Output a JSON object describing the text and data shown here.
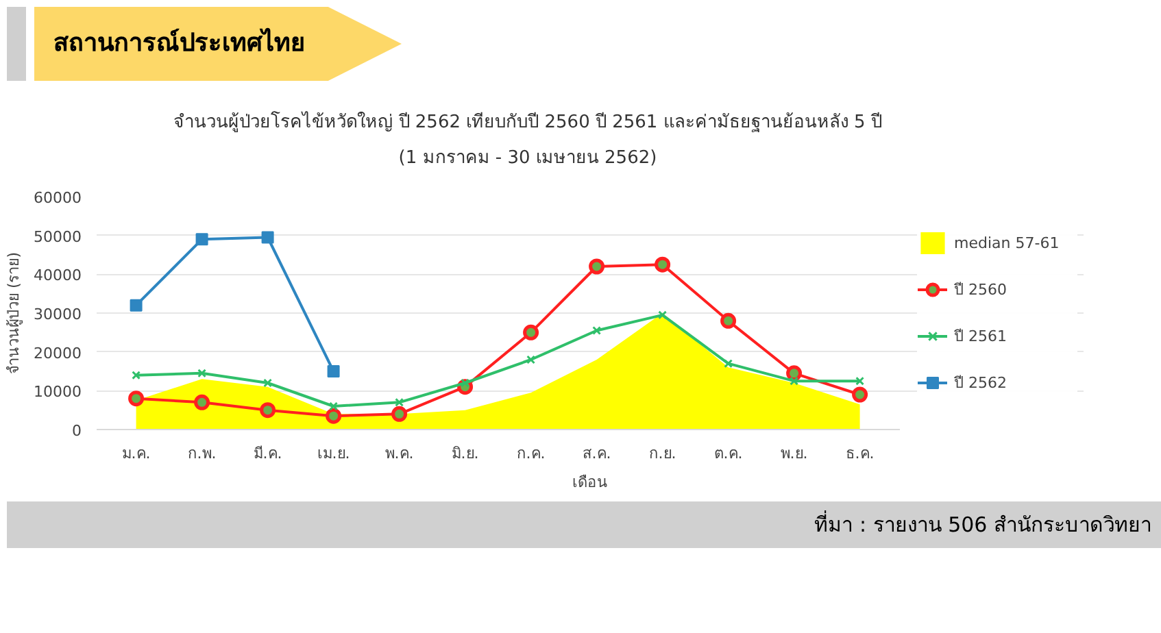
{
  "chart_data": {
    "type": "line",
    "title": "จำนวนผู้ป่วยโรคไข้หวัดใหญ่ ปี 2562 เทียบกับปี 2560 ปี 2561 และค่ามัธยฐานย้อนหลัง 5 ปี",
    "subtitle": "(1 มกราคม - 30 เมษายน 2562)",
    "xlabel": "เดือน",
    "ylabel": "จำนวนผู้ป่วย (ราย)",
    "annotations": [
      "สถานการณ์ประเทศไทย",
      "ที่มา : รายงาน 506 สำนักระบาดวิทยา"
    ],
    "categories": [
      "ม.ค.",
      "ก.พ.",
      "มี.ค.",
      "เม.ย.",
      "พ.ค.",
      "มิ.ย.",
      "ก.ค.",
      "ส.ค.",
      "ก.ย.",
      "ต.ค.",
      "พ.ย.",
      "ธ.ค."
    ],
    "ylim": [
      0,
      60000
    ],
    "yticks": [
      0,
      10000,
      20000,
      30000,
      40000,
      50000,
      60000
    ],
    "grid": "y",
    "legend": "right",
    "series": [
      {
        "name": "median 57-61",
        "type": "area",
        "color": "#ffff00",
        "values": [
          7500,
          13000,
          11000,
          4000,
          4000,
          5000,
          9500,
          18000,
          30000,
          16000,
          12000,
          6500
        ]
      },
      {
        "name": "ปี 2560",
        "marker": "circle",
        "color": "#ff2020",
        "values": [
          8000,
          7000,
          5000,
          3500,
          4000,
          11000,
          25000,
          42000,
          42500,
          28000,
          14500,
          9000
        ]
      },
      {
        "name": "ปี 2561",
        "marker": "cross",
        "color": "#2fbf6a",
        "values": [
          14000,
          14500,
          12000,
          6000,
          7000,
          12000,
          18000,
          25500,
          29500,
          17000,
          12500,
          12500
        ]
      },
      {
        "name": "ปี 2562",
        "marker": "square",
        "color": "#2e86c1",
        "values": [
          32000,
          49000,
          49500,
          15000,
          null,
          null,
          null,
          null,
          null,
          null,
          null,
          null
        ]
      }
    ]
  }
}
